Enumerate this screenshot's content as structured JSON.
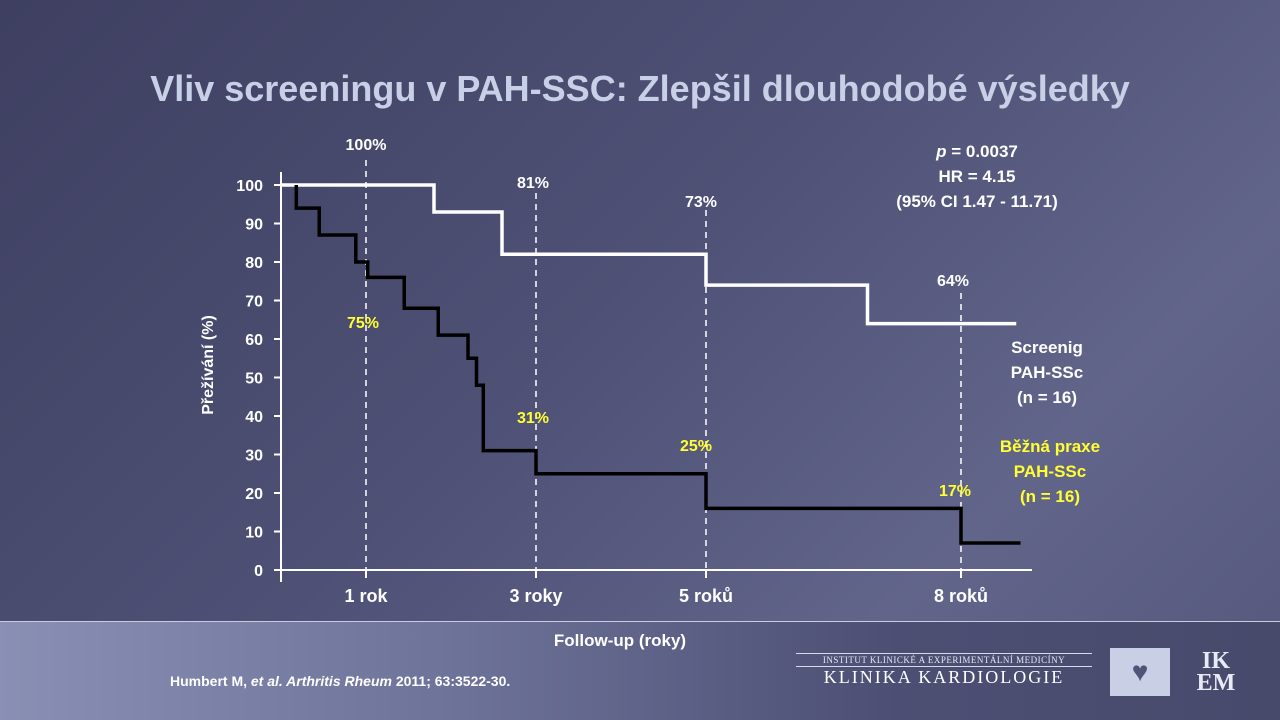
{
  "slide": {
    "title": "Vliv screeningu v PAH-SSC: Zlepšil dlouhodobé výsledky",
    "citation_authors": "Humbert M, ",
    "citation_etal": "et al. Arthritis Rheum",
    "citation_ref": " 2011; 63:3522-30.",
    "institute_line1": "INSTITUT KLINICKÉ A EXPERIMENTÁLNÍ MEDICÍNY",
    "institute_line2": "KLINIKA KARDIOLOGIE",
    "logo_text": "IKEM",
    "logo_icon": "heart-icon"
  },
  "chart_data": {
    "type": "line",
    "title": "",
    "xlabel": "Follow-up  (roky)",
    "ylabel": "Přežívání (%)",
    "ylim": [
      0,
      100
    ],
    "yticks": [
      0,
      10,
      20,
      30,
      40,
      50,
      60,
      70,
      80,
      90,
      100
    ],
    "xlim": [
      0,
      9
    ],
    "xticks": [
      {
        "x": 1,
        "label": "1 rok"
      },
      {
        "x": 3,
        "label": "3 roky"
      },
      {
        "x": 5,
        "label": "5 roků"
      },
      {
        "x": 8,
        "label": "8 roků"
      }
    ],
    "stats": {
      "p_label": "p",
      "p_value": " = 0.0037",
      "hr": "HR = 4.15",
      "ci": "(95% CI 1.47 - 11.71)"
    },
    "series": [
      {
        "name": "Screenig PAH-SSc",
        "legend_lines": [
          "Screenig",
          "PAH-SSc",
          "(n = 16)"
        ],
        "color": "#ffffff",
        "steps": [
          [
            0,
            100
          ],
          [
            1.8,
            100
          ],
          [
            1.8,
            93
          ],
          [
            2.6,
            93
          ],
          [
            2.6,
            82
          ],
          [
            5,
            82
          ],
          [
            5,
            74
          ],
          [
            6.9,
            74
          ],
          [
            6.9,
            64
          ],
          [
            8.65,
            64
          ]
        ],
        "milestones": [
          {
            "x": 1,
            "label": "100%",
            "value": 100
          },
          {
            "x": 3,
            "label": "81%",
            "value": 81
          },
          {
            "x": 5,
            "label": "73%",
            "value": 73
          },
          {
            "x": 8,
            "label": "64%",
            "value": 64
          }
        ]
      },
      {
        "name": "Běžná praxe PAH-SSc",
        "legend_lines": [
          "Běžná praxe",
          "PAH-SSc",
          "(n = 16)"
        ],
        "color": "#000000",
        "steps": [
          [
            0.18,
            100
          ],
          [
            0.18,
            94
          ],
          [
            0.45,
            94
          ],
          [
            0.45,
            87
          ],
          [
            0.88,
            87
          ],
          [
            0.88,
            80
          ],
          [
            1.02,
            80
          ],
          [
            1.02,
            76
          ],
          [
            1.45,
            76
          ],
          [
            1.45,
            68
          ],
          [
            1.85,
            68
          ],
          [
            1.85,
            61
          ],
          [
            2.2,
            61
          ],
          [
            2.2,
            55
          ],
          [
            2.3,
            55
          ],
          [
            2.3,
            48
          ],
          [
            2.38,
            48
          ],
          [
            2.38,
            31
          ],
          [
            3,
            31
          ],
          [
            3,
            25
          ],
          [
            5,
            25
          ],
          [
            5,
            16
          ],
          [
            8,
            16
          ],
          [
            8,
            7
          ],
          [
            8.7,
            7
          ]
        ],
        "milestones": [
          {
            "x": 1,
            "label": "75%",
            "value": 75
          },
          {
            "x": 3,
            "label": "31%",
            "value": 31
          },
          {
            "x": 5,
            "label": "25%",
            "value": 25
          },
          {
            "x": 8,
            "label": "17%",
            "value": 17
          }
        ]
      }
    ],
    "colors": {
      "screening": "#ffffff",
      "practice": "#000000",
      "practice_label": "#ffff33",
      "dashed": "#ffffff"
    }
  }
}
